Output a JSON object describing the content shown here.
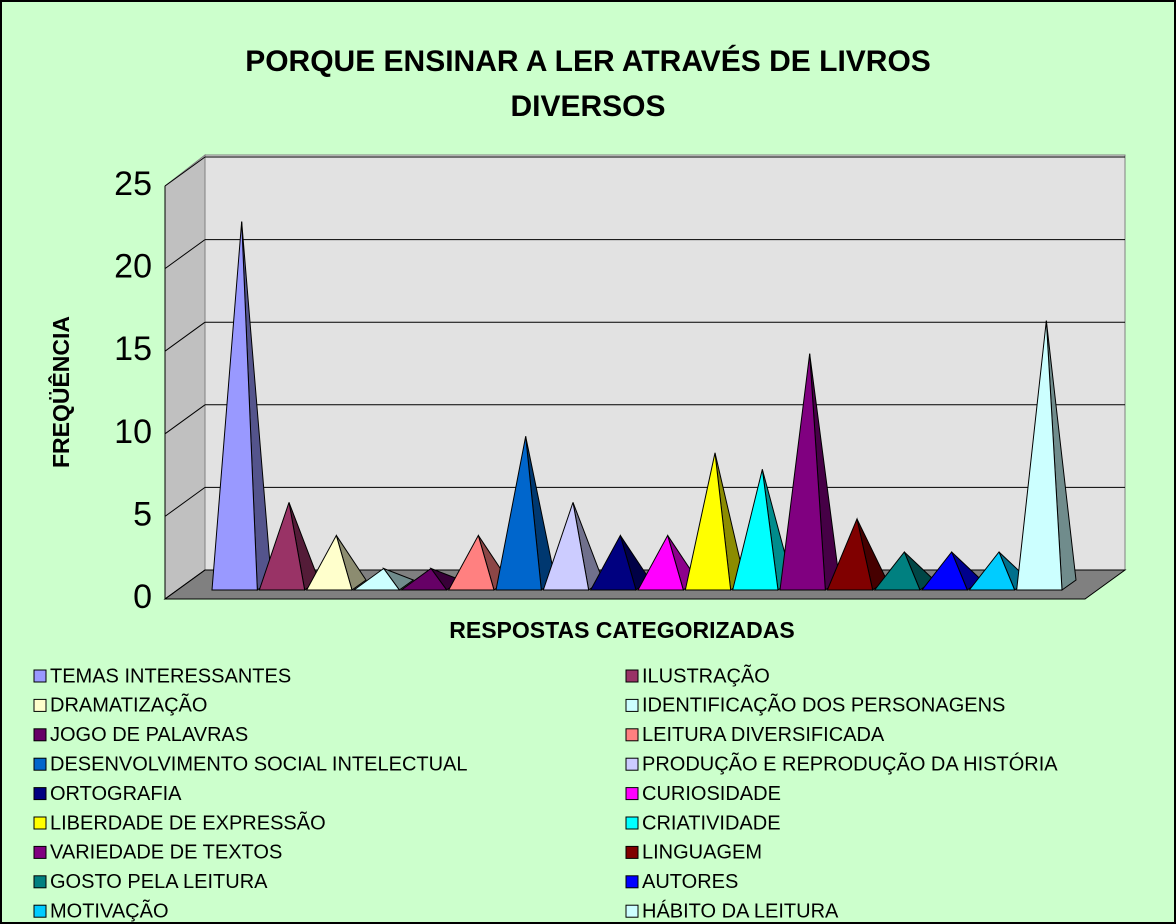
{
  "chart_data": {
    "type": "pyramid",
    "title": [
      "PORQUE ENSINAR  A LER ATRAVÉS DE LIVROS",
      "DIVERSOS"
    ],
    "ylabel": "FREQÜÊNCIA",
    "xlabel": "RESPOSTAS CATEGORIZADAS",
    "ylim": [
      0,
      25
    ],
    "yticks": [
      0,
      5,
      10,
      15,
      20,
      25
    ],
    "grid": true,
    "series": [
      {
        "name": "TEMAS INTERESSANTES",
        "color": "#9999ff",
        "values": [
          22
        ]
      },
      {
        "name": "ILUSTRAÇÃO",
        "color": "#993366",
        "values": [
          5
        ]
      },
      {
        "name": "DRAMATIZAÇÃO",
        "color": "#ffffcc",
        "values": [
          3
        ]
      },
      {
        "name": "IDENTIFICAÇÃO DOS PERSONAGENS",
        "color": "#ccffff",
        "values": [
          1
        ]
      },
      {
        "name": "JOGO DE PALAVRAS",
        "color": "#660066",
        "values": [
          1
        ]
      },
      {
        "name": "LEITURA DIVERSIFICADA",
        "color": "#ff8080",
        "values": [
          3
        ]
      },
      {
        "name": "DESENVOLVIMENTO SOCIAL INTELECTUAL",
        "color": "#0066cc",
        "values": [
          9
        ]
      },
      {
        "name": "PRODUÇÃO E REPRODUÇÃO DA HISTÓRIA",
        "color": "#ccccff",
        "values": [
          5
        ]
      },
      {
        "name": "ORTOGRAFIA",
        "color": "#000080",
        "values": [
          3
        ]
      },
      {
        "name": "CURIOSIDADE",
        "color": "#ff00ff",
        "values": [
          3
        ]
      },
      {
        "name": "LIBERDADE DE EXPRESSÃO",
        "color": "#ffff00",
        "values": [
          8
        ]
      },
      {
        "name": "CRIATIVIDADE",
        "color": "#00ffff",
        "values": [
          7
        ]
      },
      {
        "name": "VARIEDADE DE TEXTOS",
        "color": "#800080",
        "values": [
          14
        ]
      },
      {
        "name": "LINGUAGEM",
        "color": "#800000",
        "values": [
          4
        ]
      },
      {
        "name": "GOSTO PELA LEITURA",
        "color": "#008080",
        "values": [
          2
        ]
      },
      {
        "name": "AUTORES",
        "color": "#0000ff",
        "values": [
          2
        ]
      },
      {
        "name": "MOTIVAÇÃO",
        "color": "#00ccff",
        "values": [
          2
        ]
      },
      {
        "name": "HÁBITO DA LEITURA",
        "color": "#ccffff",
        "values": [
          16
        ]
      }
    ]
  }
}
